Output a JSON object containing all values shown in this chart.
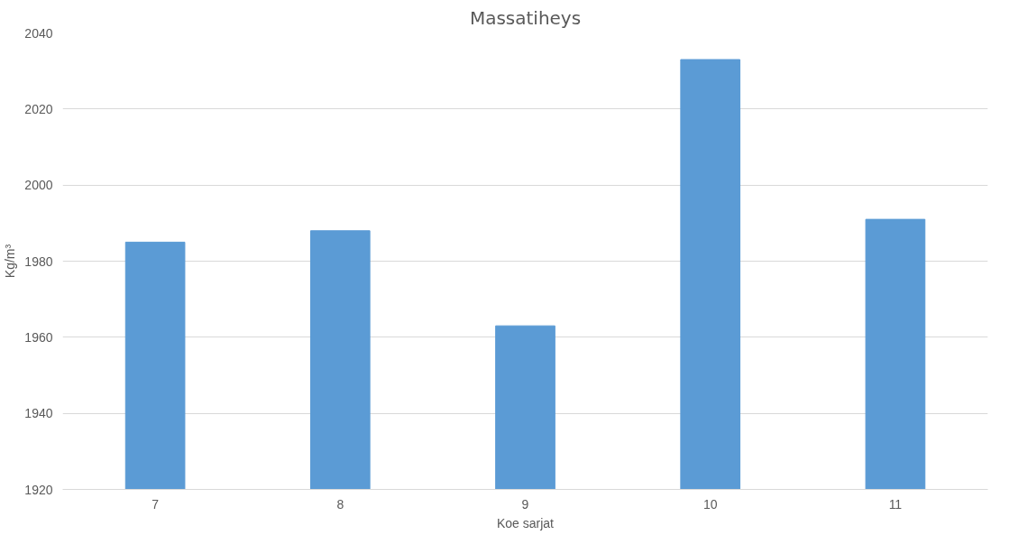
{
  "chart_data": {
    "type": "bar",
    "title": "Massatiheys",
    "xlabel": "Koe sarjat",
    "ylabel": "Kg/m³",
    "categories": [
      "7",
      "8",
      "9",
      "10",
      "11"
    ],
    "values": [
      1985,
      1988,
      1963,
      2033,
      1991
    ],
    "color": "#5b9bd5",
    "ylim": [
      1920,
      2040
    ],
    "yticks": [
      1920,
      1940,
      1960,
      1980,
      2000,
      2020,
      2040
    ],
    "grid": "y"
  }
}
